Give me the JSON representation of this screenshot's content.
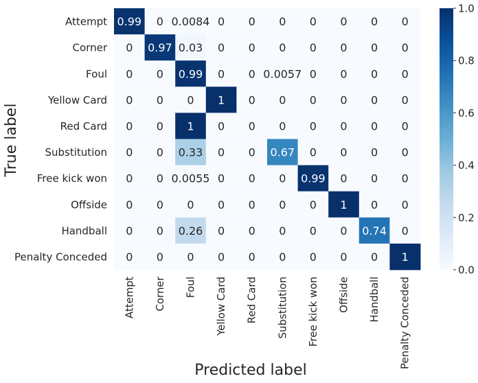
{
  "chart_data": {
    "type": "heatmap",
    "title": "",
    "xlabel": "Predicted label",
    "ylabel": "True label",
    "rows": [
      "Attempt",
      "Corner",
      "Foul",
      "Yellow Card",
      "Red Card",
      "Substitution",
      "Free kick won",
      "Offside",
      "Handball",
      "Penalty Conceded"
    ],
    "columns": [
      "Attempt",
      "Corner",
      "Foul",
      "Yellow Card",
      "Red Card",
      "Substitution",
      "Free kick won",
      "Offside",
      "Handball",
      "Penalty Conceded"
    ],
    "values": [
      [
        0.99,
        0,
        0.0084,
        0,
        0,
        0,
        0,
        0,
        0,
        0
      ],
      [
        0,
        0.97,
        0.03,
        0,
        0,
        0,
        0,
        0,
        0,
        0
      ],
      [
        0,
        0,
        0.99,
        0,
        0,
        0.0057,
        0,
        0,
        0,
        0
      ],
      [
        0,
        0,
        0,
        1,
        0,
        0,
        0,
        0,
        0,
        0
      ],
      [
        0,
        0,
        1,
        0,
        0,
        0,
        0,
        0,
        0,
        0
      ],
      [
        0,
        0,
        0.33,
        0,
        0,
        0.67,
        0,
        0,
        0,
        0
      ],
      [
        0,
        0,
        0.0055,
        0,
        0,
        0,
        0.99,
        0,
        0,
        0
      ],
      [
        0,
        0,
        0,
        0,
        0,
        0,
        0,
        1,
        0,
        0
      ],
      [
        0,
        0,
        0.26,
        0,
        0,
        0,
        0,
        0,
        0.74,
        0
      ],
      [
        0,
        0,
        0,
        0,
        0,
        0,
        0,
        0,
        0,
        1
      ]
    ],
    "cell_labels": [
      [
        "0.99",
        "0",
        "0.0084",
        "0",
        "0",
        "0",
        "0",
        "0",
        "0",
        "0"
      ],
      [
        "0",
        "0.97",
        "0.03",
        "0",
        "0",
        "0",
        "0",
        "0",
        "0",
        "0"
      ],
      [
        "0",
        "0",
        "0.99",
        "0",
        "0",
        "0.0057",
        "0",
        "0",
        "0",
        "0"
      ],
      [
        "0",
        "0",
        "0",
        "1",
        "0",
        "0",
        "0",
        "0",
        "0",
        "0"
      ],
      [
        "0",
        "0",
        "1",
        "0",
        "0",
        "0",
        "0",
        "0",
        "0",
        "0"
      ],
      [
        "0",
        "0",
        "0.33",
        "0",
        "0",
        "0.67",
        "0",
        "0",
        "0",
        "0"
      ],
      [
        "0",
        "0",
        "0.0055",
        "0",
        "0",
        "0",
        "0.99",
        "0",
        "0",
        "0"
      ],
      [
        "0",
        "0",
        "0",
        "0",
        "0",
        "0",
        "0",
        "1",
        "0",
        "0"
      ],
      [
        "0",
        "0",
        "0.26",
        "0",
        "0",
        "0",
        "0",
        "0",
        "0.74",
        "0"
      ],
      [
        "0",
        "0",
        "0",
        "0",
        "0",
        "0",
        "0",
        "0",
        "0",
        "1"
      ]
    ],
    "colorbar": {
      "range": [
        0,
        1
      ],
      "ticks": [
        "0.0",
        "0.2",
        "0.4",
        "0.6",
        "0.8",
        "1.0"
      ],
      "colormap": "Blues",
      "low_color": "#f7fbff",
      "high_color": "#08306b"
    },
    "grid": false,
    "legend": "colorbar-right"
  }
}
